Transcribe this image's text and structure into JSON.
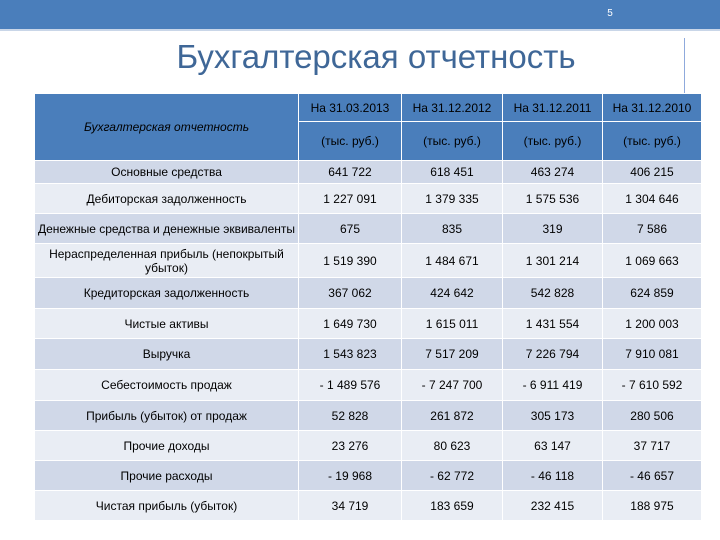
{
  "slide": {
    "page_number": "5",
    "title": "Бухгалтерская отчетность"
  },
  "table": {
    "header": {
      "row_label": "Бухгалтерская отчетность",
      "columns": [
        {
          "date": "На 31.03.2013",
          "unit": "(тыс. руб.)"
        },
        {
          "date": "На 31.12.2012",
          "unit": "(тыс. руб.)"
        },
        {
          "date": "На 31.12.2011",
          "unit": "(тыс. руб.)"
        },
        {
          "date": "На 31.12.2010",
          "unit": "(тыс. руб.)"
        }
      ]
    },
    "rows": [
      {
        "label": "Основные средства",
        "values": [
          "641 722",
          "618 451",
          "463 274",
          "406 215"
        ]
      },
      {
        "label": "Дебиторская задолженность",
        "values": [
          "1 227 091",
          "1 379 335",
          "1 575 536",
          "1 304 646"
        ]
      },
      {
        "label": "Денежные средства и денежные эквиваленты",
        "values": [
          "675",
          "835",
          "319",
          "7 586"
        ]
      },
      {
        "label": "Нераспределенная прибыль (непокрытый убыток)",
        "values": [
          "1 519 390",
          "1 484 671",
          "1 301 214",
          "1 069 663"
        ]
      },
      {
        "label": "Кредиторская задолженность",
        "values": [
          "367 062",
          "424 642",
          "542 828",
          "624 859"
        ]
      },
      {
        "label": "Чистые активы",
        "values": [
          "1 649 730",
          "1 615 011",
          "1 431 554",
          "1 200 003"
        ]
      },
      {
        "label": "Выручка",
        "values": [
          "1 543 823",
          "7 517 209",
          "7 226 794",
          "7 910 081"
        ]
      },
      {
        "label": "Себестоимость продаж",
        "values": [
          "- 1 489 576",
          "- 7 247 700",
          "- 6 911 419",
          "- 7 610 592"
        ]
      },
      {
        "label": "Прибыль (убыток) от продаж",
        "values": [
          "52 828",
          "261 872",
          "305 173",
          "280 506"
        ]
      },
      {
        "label": "Прочие доходы",
        "values": [
          "23 276",
          "80 623",
          "63 147",
          "37 717"
        ]
      },
      {
        "label": "Прочие расходы",
        "values": [
          "- 19 968",
          "- 62 772",
          "- 46 118",
          "- 46 657"
        ]
      },
      {
        "label": "Чистая прибыль (убыток)",
        "values": [
          "34 719",
          "183 659",
          "232 415",
          "188 975"
        ]
      }
    ]
  }
}
